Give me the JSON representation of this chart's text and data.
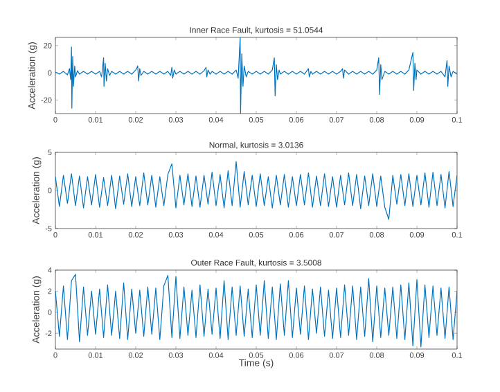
{
  "chart_data": [
    {
      "type": "line",
      "title": "Inner Race Fault, kurtosis = 51.0544",
      "ylabel": "Acceleration (g)",
      "color": "#0072bd",
      "xlim": [
        0,
        0.1
      ],
      "ylim": [
        -30,
        26
      ],
      "xticks": [
        0,
        0.01,
        0.02,
        0.03,
        0.04,
        0.05,
        0.06,
        0.07,
        0.08,
        0.09,
        0.1
      ],
      "yticks": [
        -20,
        0,
        20
      ],
      "x": [
        0,
        0.001,
        0.002,
        0.003,
        0.0035,
        0.0038,
        0.004,
        0.0041,
        0.0043,
        0.0045,
        0.0048,
        0.005,
        0.0055,
        0.006,
        0.007,
        0.008,
        0.009,
        0.01,
        0.011,
        0.0115,
        0.012,
        0.0121,
        0.0124,
        0.0127,
        0.013,
        0.0135,
        0.014,
        0.015,
        0.016,
        0.017,
        0.018,
        0.019,
        0.02,
        0.0205,
        0.0207,
        0.021,
        0.0213,
        0.022,
        0.023,
        0.024,
        0.025,
        0.026,
        0.027,
        0.028,
        0.0287,
        0.029,
        0.0292,
        0.0296,
        0.03,
        0.031,
        0.032,
        0.033,
        0.034,
        0.035,
        0.036,
        0.037,
        0.0375,
        0.0377,
        0.038,
        0.0385,
        0.039,
        0.04,
        0.041,
        0.042,
        0.043,
        0.044,
        0.045,
        0.0455,
        0.046,
        0.0461,
        0.0464,
        0.0467,
        0.047,
        0.0475,
        0.048,
        0.049,
        0.05,
        0.051,
        0.052,
        0.053,
        0.054,
        0.0545,
        0.0547,
        0.055,
        0.0553,
        0.0557,
        0.056,
        0.057,
        0.058,
        0.059,
        0.06,
        0.061,
        0.062,
        0.063,
        0.0632,
        0.0636,
        0.064,
        0.065,
        0.066,
        0.067,
        0.068,
        0.069,
        0.07,
        0.071,
        0.0715,
        0.0717,
        0.072,
        0.073,
        0.074,
        0.075,
        0.076,
        0.077,
        0.078,
        0.079,
        0.08,
        0.0805,
        0.0807,
        0.081,
        0.0813,
        0.082,
        0.083,
        0.084,
        0.085,
        0.086,
        0.087,
        0.088,
        0.089,
        0.0892,
        0.0895,
        0.0898,
        0.09,
        0.091,
        0.092,
        0.093,
        0.094,
        0.095,
        0.096,
        0.097,
        0.0975,
        0.0977,
        0.098,
        0.0985,
        0.099,
        0.1
      ],
      "values": [
        0.5,
        -1,
        1,
        -1.5,
        3,
        -5,
        19,
        -26,
        12,
        -10,
        5,
        -3,
        1.5,
        -1,
        1,
        -1,
        1,
        -1,
        1,
        -3,
        11,
        -10,
        7,
        -6,
        3,
        -2,
        1,
        -1,
        1,
        -1,
        1,
        -1,
        2,
        5,
        -6,
        3,
        -2,
        1,
        -1,
        1,
        -1,
        1,
        -1,
        1,
        -2,
        4,
        -4,
        2,
        -1,
        1,
        -1,
        1,
        -1,
        1,
        -1,
        1.5,
        4,
        -3,
        2,
        -1,
        1,
        -1,
        1,
        -1,
        1,
        -1,
        2,
        -4,
        26,
        -30,
        14,
        -10,
        5,
        -3,
        1,
        -1,
        1,
        -1,
        1,
        -1,
        2,
        11,
        -17,
        6,
        -5,
        2,
        -1,
        1,
        -1,
        1,
        -1,
        1,
        -1,
        3,
        -3,
        1,
        -1,
        1,
        -1,
        1,
        -1,
        1,
        -1,
        1,
        3,
        -4,
        2,
        -1,
        1,
        -1,
        1,
        -1,
        1,
        -1,
        2,
        11,
        -16,
        6,
        -5,
        1,
        -1,
        1,
        -1,
        1,
        -1,
        2,
        15,
        -13,
        7,
        -5,
        2,
        -1,
        1,
        -1,
        1,
        -1,
        1,
        -3,
        9,
        -10,
        5,
        -3,
        1,
        -1
      ]
    },
    {
      "type": "line",
      "title": "Normal, kurtosis = 3.0136",
      "ylabel": "Acceleration (g)",
      "color": "#0072bd",
      "xlim": [
        0,
        0.1
      ],
      "ylim": [
        -5,
        5
      ],
      "xticks": [
        0,
        0.01,
        0.02,
        0.03,
        0.04,
        0.05,
        0.06,
        0.07,
        0.08,
        0.09,
        0.1
      ],
      "yticks": [
        -5,
        0,
        5
      ],
      "x": [
        0,
        0.001,
        0.002,
        0.003,
        0.004,
        0.005,
        0.006,
        0.007,
        0.008,
        0.009,
        0.01,
        0.011,
        0.012,
        0.013,
        0.014,
        0.015,
        0.016,
        0.017,
        0.018,
        0.019,
        0.02,
        0.021,
        0.022,
        0.023,
        0.024,
        0.025,
        0.026,
        0.027,
        0.028,
        0.029,
        0.03,
        0.031,
        0.032,
        0.033,
        0.034,
        0.035,
        0.036,
        0.037,
        0.038,
        0.039,
        0.04,
        0.041,
        0.042,
        0.043,
        0.044,
        0.045,
        0.046,
        0.047,
        0.048,
        0.049,
        0.05,
        0.051,
        0.052,
        0.053,
        0.054,
        0.055,
        0.056,
        0.057,
        0.058,
        0.059,
        0.06,
        0.061,
        0.062,
        0.063,
        0.064,
        0.065,
        0.066,
        0.067,
        0.068,
        0.069,
        0.07,
        0.071,
        0.072,
        0.073,
        0.074,
        0.075,
        0.076,
        0.077,
        0.078,
        0.079,
        0.08,
        0.081,
        0.082,
        0.083,
        0.084,
        0.085,
        0.086,
        0.087,
        0.088,
        0.089,
        0.09,
        0.091,
        0.092,
        0.093,
        0.094,
        0.095,
        0.096,
        0.097,
        0.098,
        0.099,
        0.1
      ],
      "values": [
        1.8,
        -2.1,
        2.0,
        -1.7,
        2.2,
        -2.0,
        1.9,
        -2.3,
        1.8,
        -1.9,
        2.1,
        -2.2,
        1.7,
        -2.0,
        2.0,
        -2.4,
        1.9,
        -1.8,
        2.2,
        -2.1,
        1.8,
        -2.0,
        2.3,
        -1.9,
        2.0,
        -2.2,
        1.8,
        -2.0,
        2.1,
        3.5,
        -2.3,
        2.0,
        -1.9,
        2.2,
        -2.1,
        1.9,
        -2.2,
        2.0,
        -1.8,
        2.4,
        -2.0,
        2.1,
        -2.3,
        2.6,
        -2.0,
        3.8,
        -2.2,
        2.5,
        -1.9,
        2.0,
        -2.1,
        2.2,
        -2.0,
        1.8,
        -2.3,
        2.0,
        -1.9,
        2.1,
        -2.2,
        1.8,
        -2.0,
        2.1,
        -1.9,
        2.3,
        -2.2,
        1.9,
        -2.0,
        2.2,
        -2.1,
        1.8,
        -2.2,
        2.0,
        -1.9,
        2.3,
        -2.0,
        2.1,
        -2.4,
        1.9,
        -2.0,
        2.2,
        -2.1,
        1.9,
        -2.2,
        -3.8,
        2.0,
        -1.8,
        2.1,
        -2.0,
        2.2,
        -2.1,
        2.0,
        -1.9,
        2.3,
        -2.2,
        2.4,
        -2.0,
        2.1,
        -2.3,
        2.5,
        -2.1,
        2.0
      ]
    },
    {
      "type": "line",
      "title": "Outer Race Fault, kurtosis = 3.5008",
      "xlabel": "Time (s)",
      "ylabel": "Acceleration (g)",
      "color": "#0072bd",
      "xlim": [
        0,
        0.1
      ],
      "ylim": [
        -3.5,
        4
      ],
      "xticks": [
        0,
        0.01,
        0.02,
        0.03,
        0.04,
        0.05,
        0.06,
        0.07,
        0.08,
        0.09,
        0.1
      ],
      "yticks": [
        -2,
        0,
        2,
        4
      ],
      "x": [
        0,
        0.001,
        0.002,
        0.003,
        0.004,
        0.005,
        0.006,
        0.007,
        0.008,
        0.009,
        0.01,
        0.011,
        0.012,
        0.013,
        0.014,
        0.015,
        0.016,
        0.017,
        0.018,
        0.019,
        0.02,
        0.021,
        0.022,
        0.023,
        0.024,
        0.025,
        0.026,
        0.027,
        0.028,
        0.029,
        0.03,
        0.031,
        0.032,
        0.033,
        0.034,
        0.035,
        0.036,
        0.037,
        0.038,
        0.039,
        0.04,
        0.041,
        0.042,
        0.043,
        0.044,
        0.045,
        0.046,
        0.047,
        0.048,
        0.049,
        0.05,
        0.051,
        0.052,
        0.053,
        0.054,
        0.055,
        0.056,
        0.057,
        0.058,
        0.059,
        0.06,
        0.061,
        0.062,
        0.063,
        0.064,
        0.065,
        0.066,
        0.067,
        0.068,
        0.069,
        0.07,
        0.071,
        0.072,
        0.073,
        0.074,
        0.075,
        0.076,
        0.077,
        0.078,
        0.079,
        0.08,
        0.081,
        0.082,
        0.083,
        0.084,
        0.085,
        0.086,
        0.087,
        0.088,
        0.089,
        0.09,
        0.091,
        0.092,
        0.093,
        0.094,
        0.095,
        0.096,
        0.097,
        0.098,
        0.099,
        0.1
      ],
      "values": [
        2.0,
        -2.3,
        2.5,
        -2.6,
        3.0,
        3.6,
        -2.8,
        2.4,
        -2.2,
        2.0,
        -2.1,
        2.2,
        -2.4,
        2.6,
        -2.2,
        2.0,
        -2.5,
        2.8,
        -2.6,
        2.2,
        -2.0,
        2.1,
        -2.3,
        2.4,
        -2.1,
        2.3,
        -2.6,
        2.5,
        3.5,
        -2.4,
        3.4,
        -2.5,
        2.4,
        -2.2,
        2.1,
        -2.4,
        2.6,
        -2.3,
        2.2,
        -2.1,
        2.3,
        -2.5,
        3.0,
        -2.6,
        2.4,
        -2.2,
        2.5,
        -2.3,
        2.2,
        -2.4,
        2.6,
        -2.2,
        3.0,
        -2.5,
        2.4,
        -2.6,
        2.7,
        -2.2,
        3.0,
        -2.4,
        2.3,
        -2.1,
        2.5,
        -2.6,
        2.2,
        -2.0,
        2.4,
        -2.3,
        2.1,
        -2.5,
        2.3,
        -2.4,
        2.6,
        -2.2,
        2.5,
        -2.6,
        2.4,
        -2.3,
        3.2,
        -2.8,
        2.5,
        -2.4,
        2.3,
        -2.2,
        2.4,
        -2.5,
        2.6,
        -2.6,
        2.8,
        -3.2,
        3.1,
        -3.3,
        2.6,
        -2.4,
        2.5,
        -2.2,
        2.3,
        -2.5,
        2.4,
        -2.6,
        2.0
      ]
    }
  ]
}
